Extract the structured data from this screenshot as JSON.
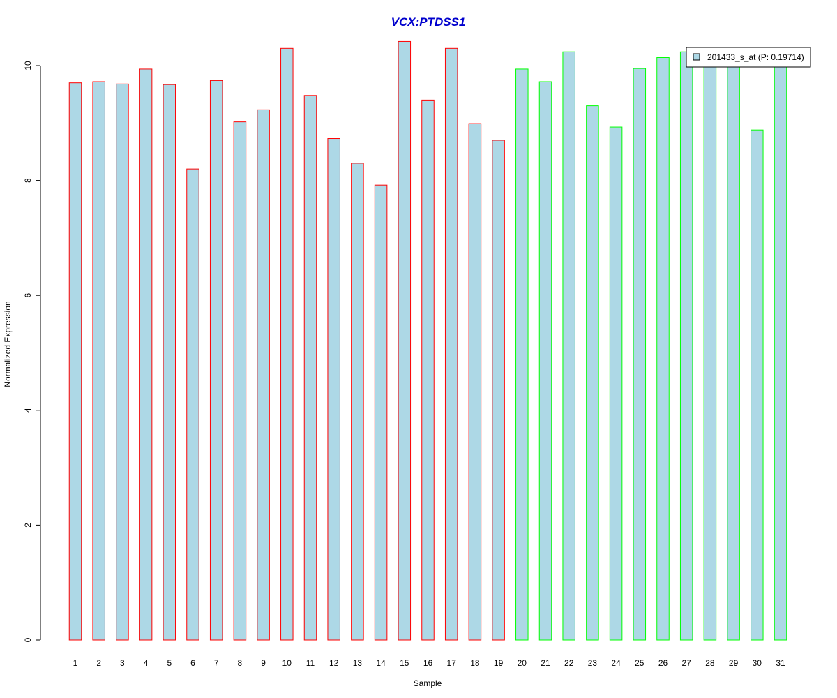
{
  "chart_data": {
    "type": "bar",
    "title": "VCX:PTDSS1",
    "xlabel": "Sample",
    "ylabel": "Normalized Expression",
    "ylim": [
      0,
      10.5
    ],
    "yticks": [
      "0",
      "2",
      "4",
      "6",
      "8",
      "10"
    ],
    "categories": [
      "1",
      "2",
      "3",
      "4",
      "5",
      "6",
      "7",
      "8",
      "9",
      "10",
      "11",
      "12",
      "13",
      "14",
      "15",
      "16",
      "17",
      "18",
      "19",
      "20",
      "21",
      "22",
      "23",
      "24",
      "25",
      "26",
      "27",
      "28",
      "29",
      "30",
      "31"
    ],
    "values": [
      9.7,
      9.72,
      9.68,
      9.94,
      9.67,
      8.2,
      9.74,
      9.02,
      9.23,
      10.3,
      9.48,
      8.73,
      8.3,
      7.92,
      10.42,
      9.4,
      10.3,
      8.99,
      8.7,
      9.94,
      9.72,
      10.24,
      9.3,
      8.93,
      9.95,
      10.14,
      10.24,
      10.2,
      10.15,
      8.88,
      10.23
    ],
    "group_colors": [
      "#ff0000",
      "#ff0000",
      "#ff0000",
      "#ff0000",
      "#ff0000",
      "#ff0000",
      "#ff0000",
      "#ff0000",
      "#ff0000",
      "#ff0000",
      "#ff0000",
      "#ff0000",
      "#ff0000",
      "#ff0000",
      "#ff0000",
      "#ff0000",
      "#ff0000",
      "#ff0000",
      "#ff0000",
      "#00ff00",
      "#00ff00",
      "#00ff00",
      "#00ff00",
      "#00ff00",
      "#00ff00",
      "#00ff00",
      "#00ff00",
      "#00ff00",
      "#00ff00",
      "#00ff00",
      "#00ff00"
    ],
    "bar_fill": "#add8e6",
    "title_color": "#0000cd",
    "grid": false,
    "legend": {
      "position": "top-right",
      "entries": [
        {
          "label": "201433_s_at (P: 0.19714)",
          "color": "#add8e6"
        }
      ]
    }
  }
}
